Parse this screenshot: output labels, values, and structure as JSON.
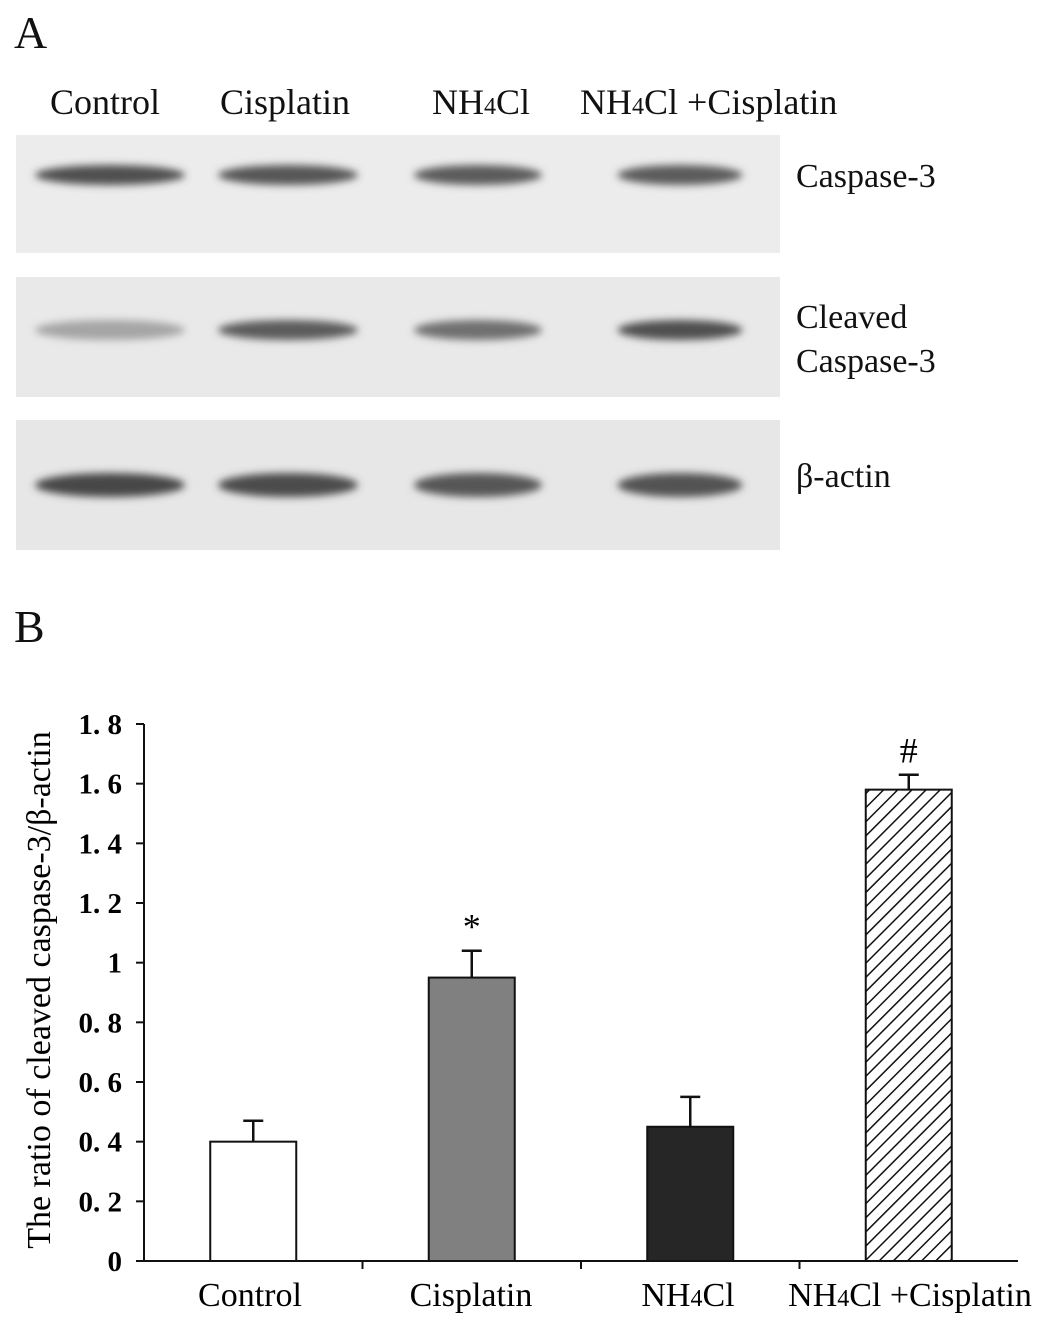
{
  "panel_a": {
    "letter": "A",
    "lanes": [
      {
        "text": "Control"
      },
      {
        "text": "Cisplatin"
      },
      {
        "text": "NH",
        "sub": "4",
        "tail": "Cl"
      },
      {
        "text": "NH",
        "sub": "4",
        "tail": "Cl +Cisplatin"
      }
    ],
    "rows": [
      {
        "label": [
          "Caspase-3"
        ],
        "band_intensity": [
          0.78,
          0.74,
          0.72,
          0.72
        ]
      },
      {
        "label": [
          "Cleaved",
          "Caspase-3"
        ],
        "band_intensity": [
          0.35,
          0.72,
          0.62,
          0.78
        ]
      },
      {
        "label": [
          "β-actin"
        ],
        "band_intensity": [
          0.82,
          0.8,
          0.74,
          0.76
        ]
      }
    ]
  },
  "panel_b": {
    "letter": "B"
  },
  "chart_data": {
    "type": "bar",
    "categories": [
      "Control",
      "Cisplatin",
      "NH4Cl",
      "NH4Cl +Cisplatin"
    ],
    "category_display": [
      {
        "text": "Control"
      },
      {
        "text": "Cisplatin"
      },
      {
        "text": "NH",
        "sub": "4",
        "tail": "Cl"
      },
      {
        "text": "NH",
        "sub": "4",
        "tail": "Cl +Cisplatin"
      }
    ],
    "values": [
      0.4,
      0.95,
      0.45,
      1.58
    ],
    "errors": [
      0.07,
      0.09,
      0.1,
      0.05
    ],
    "annotations": [
      "",
      "*",
      "",
      "#"
    ],
    "fills": [
      "#ffffff",
      "#808080",
      "#262626",
      "hatch"
    ],
    "ylabel": "The ratio of cleaved caspase-3/β-actin",
    "xlabel": "",
    "ylim": [
      0,
      1.8
    ],
    "yticks": [
      "0",
      "0. 2",
      "0. 4",
      "0. 6",
      "0. 8",
      "1",
      "1. 2",
      "1. 4",
      "1. 6",
      "1. 8"
    ],
    "grid": false
  }
}
